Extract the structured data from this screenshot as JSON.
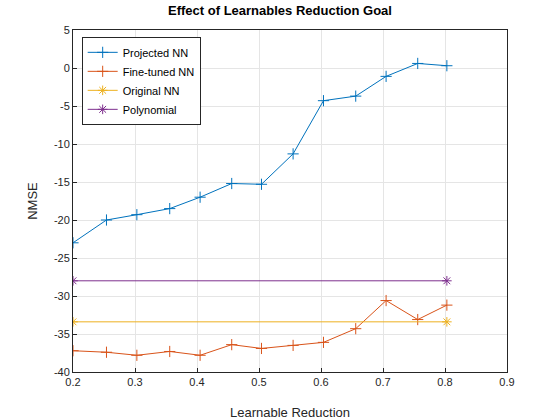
{
  "chart_data": {
    "type": "line",
    "title": "Effect of Learnables Reduction Goal",
    "x_label": "Learnable Reduction",
    "y_label": "NMSE",
    "xlim": [
      0.2,
      0.9
    ],
    "xticks": [
      0.2,
      0.3,
      0.4,
      0.5,
      0.6,
      0.7,
      0.8,
      0.9
    ],
    "ylim": [
      -40,
      5
    ],
    "yticks": [
      -40,
      -35,
      -30,
      -25,
      -20,
      -15,
      -10,
      -5,
      0,
      5
    ],
    "grid": true,
    "legend": "top-left",
    "series": [
      {
        "name": "Projected NN",
        "color": "#0072BD",
        "marker": "plus",
        "line_style": "solid",
        "x": [
          0.2,
          0.254,
          0.303,
          0.356,
          0.405,
          0.456,
          0.504,
          0.555,
          0.604,
          0.656,
          0.705,
          0.756,
          0.803
        ],
        "values": [
          -23,
          -20,
          -19.3,
          -18.5,
          -17,
          -15.2,
          -15.3,
          -11.3,
          -4.3,
          -3.7,
          -1.1,
          0.6,
          0.3
        ]
      },
      {
        "name": "Fine-tuned NN",
        "color": "#D95319",
        "marker": "plus",
        "line_style": "solid",
        "x": [
          0.2,
          0.254,
          0.303,
          0.356,
          0.405,
          0.456,
          0.504,
          0.555,
          0.604,
          0.656,
          0.705,
          0.756,
          0.803
        ],
        "values": [
          -37.2,
          -37.4,
          -37.8,
          -37.3,
          -37.8,
          -36.4,
          -36.9,
          -36.5,
          -36.1,
          -34.3,
          -30.6,
          -33.1,
          -31.2
        ]
      },
      {
        "name": "Original NN",
        "color": "#EDB120",
        "marker": "star",
        "line_style": "solid",
        "x": [
          0.2,
          0.803
        ],
        "values": [
          -33.4,
          -33.4
        ]
      },
      {
        "name": "Polynomial",
        "color": "#7E2F8E",
        "marker": "star",
        "line_style": "solid",
        "x": [
          0.2,
          0.803
        ],
        "values": [
          -28,
          -28
        ]
      }
    ]
  }
}
